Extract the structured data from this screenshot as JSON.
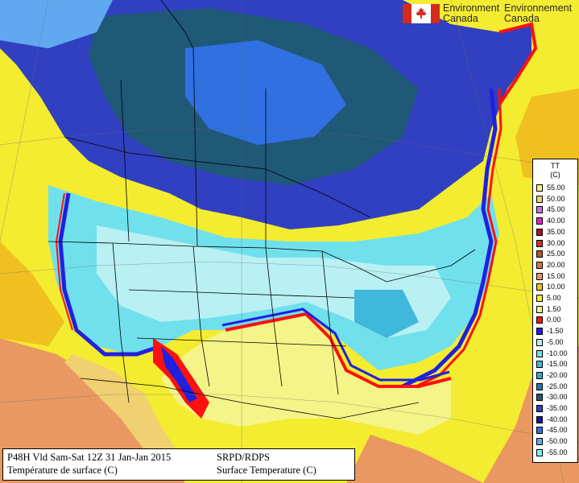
{
  "branding": {
    "name_en_line1": "Environment",
    "name_en_line2": "Canada",
    "name_fr_line1": "Environnement",
    "name_fr_line2": "Canada"
  },
  "legend": {
    "code": "TT",
    "unit": "(C)",
    "entries": [
      {
        "value": "55.00",
        "color": "#f5f28a"
      },
      {
        "value": "50.00",
        "color": "#f0d070"
      },
      {
        "value": "45.00",
        "color": "#d070e0"
      },
      {
        "value": "40.00",
        "color": "#e020d0"
      },
      {
        "value": "35.00",
        "color": "#b01020"
      },
      {
        "value": "30.00",
        "color": "#d83018"
      },
      {
        "value": "25.00",
        "color": "#b05820"
      },
      {
        "value": "20.00",
        "color": "#d07840"
      },
      {
        "value": "15.00",
        "color": "#e89860"
      },
      {
        "value": "10.00",
        "color": "#f0c020"
      },
      {
        "value": "5.00",
        "color": "#f4ec30"
      },
      {
        "value": "1.50",
        "color": "#f4f488"
      },
      {
        "value": "0.00",
        "color": "#ff1010"
      },
      {
        "value": "-1.50",
        "color": "#2020e0"
      },
      {
        "value": "-5.00",
        "color": "#b8f0f4"
      },
      {
        "value": "-10.00",
        "color": "#70e0ec"
      },
      {
        "value": "-15.00",
        "color": "#40b8dc"
      },
      {
        "value": "-20.00",
        "color": "#38a8c8"
      },
      {
        "value": "-25.00",
        "color": "#2878a8"
      },
      {
        "value": "-30.00",
        "color": "#205878"
      },
      {
        "value": "-35.00",
        "color": "#3040c0"
      },
      {
        "value": "-40.00",
        "color": "#1818a0"
      },
      {
        "value": "-45.00",
        "color": "#3070e0"
      },
      {
        "value": "-50.00",
        "color": "#60a8f0"
      },
      {
        "value": "-55.00",
        "color": "#80f0f4"
      }
    ]
  },
  "title_box": {
    "line1_left": "P48H Vld Sam-Sat 12Z 31 Jan-Jan 2015",
    "line2_left": "Température de surface (C)",
    "line1_right": "SRPD/RDPS",
    "line2_right": "Surface Temperature (C)"
  },
  "map_colors": {
    "ocean_warm": "#f4ec30",
    "ocean_hot": "#e89860",
    "land_mild": "#f4f488",
    "freezing_line": "#ff1010",
    "cold_edge": "#2020e0",
    "cold_light": "#b8f0f4",
    "cold_mid": "#70e0ec",
    "cold_deep": "#40b8dc",
    "very_cold": "#3070e0",
    "extreme_cold": "#205878",
    "arctic": "#3040c0"
  }
}
